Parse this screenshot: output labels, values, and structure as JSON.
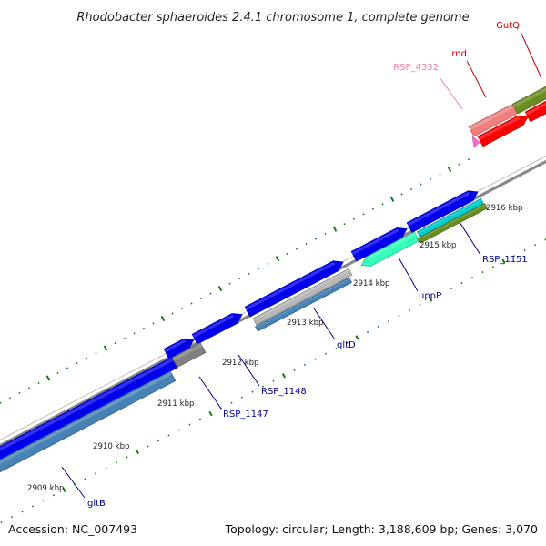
{
  "title": "Rhodobacter sphaeroides 2.4.1 chromosome 1, complete genome",
  "accession": "Accession: NC_007493",
  "topology": "Topology: circular; Length: 3,188,609 bp; Genes: 3,070",
  "kbp_labels": [
    "2909 kbp",
    "2910 kbp",
    "2911 kbp",
    "2912 kbp",
    "2913 kbp",
    "2914 kbp",
    "2915 kbp",
    "2916 kbp"
  ],
  "genes": [
    {
      "name": "gltB",
      "color": "#00008b"
    },
    {
      "name": "RSP_1147",
      "color": "#00008b"
    },
    {
      "name": "RSP_1148",
      "color": "#00008b"
    },
    {
      "name": "gltD",
      "color": "#00008b"
    },
    {
      "name": "uppP",
      "color": "#00008b"
    },
    {
      "name": "RSP_1151",
      "color": "#00008b"
    },
    {
      "name": "RSP_4332",
      "color": "#ee82a0"
    },
    {
      "name": "rnd",
      "color": "#cc0000"
    },
    {
      "name": "GutQ",
      "color": "#cc0000"
    }
  ],
  "colors": {
    "forward_cds": "#0000ee",
    "reverse_cds": "#4682b4",
    "gray_cds": "#808080",
    "light_gray_cds": "#b8b8b8",
    "aqua_cds": "#33ffbb",
    "cyan_cds": "#00cccc",
    "olive_cds": "#6b8e23",
    "red_cds": "#ff0000",
    "pink_cds": "#f08080",
    "rna": "#ff66cc",
    "backbone": "#888888",
    "tick": "#1a7a1a"
  }
}
